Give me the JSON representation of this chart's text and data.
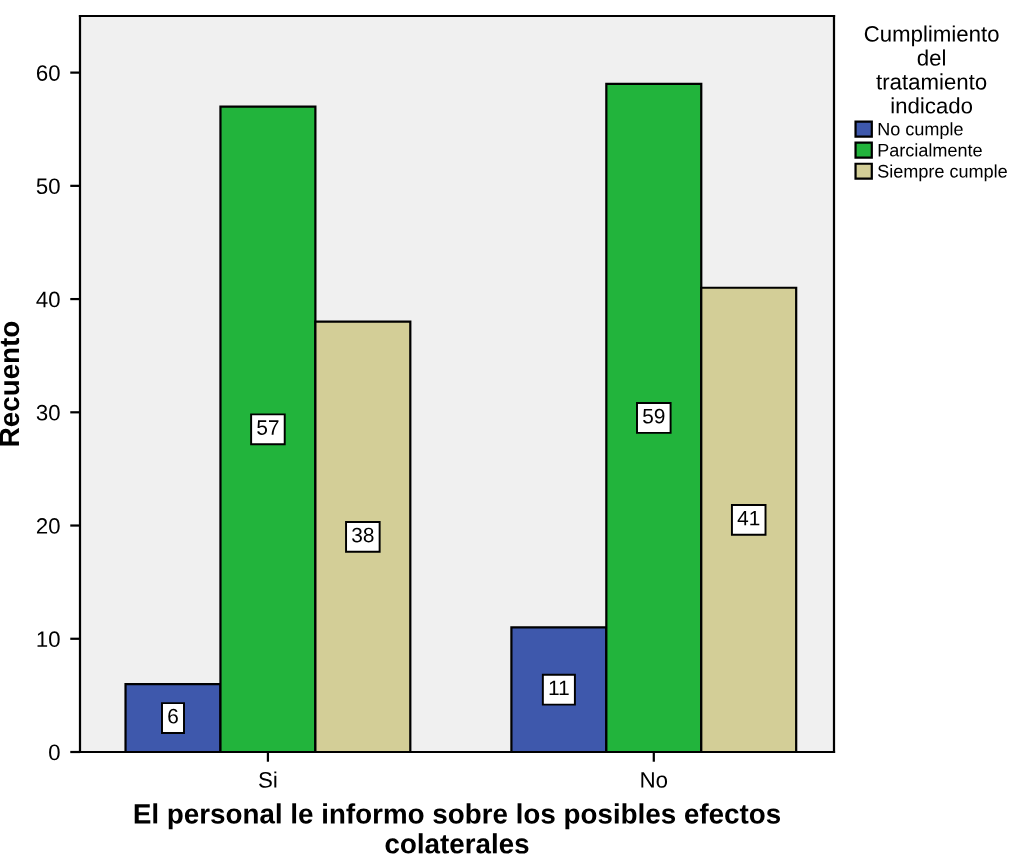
{
  "chart_data": {
    "type": "bar",
    "xlabel": "El personal le informo sobre los posibles efectos\ncolaterales",
    "ylabel": "Recuento",
    "legend_title": "Cumplimiento\ndel\ntratamiento\nindicado",
    "categories": [
      "Si",
      "No"
    ],
    "series": [
      {
        "name": "No cumple",
        "color": "#3e58ac",
        "values": [
          6,
          11
        ]
      },
      {
        "name": "Parcialmente",
        "color": "#22b43c",
        "values": [
          57,
          59
        ]
      },
      {
        "name": "Siempre cumple",
        "color": "#d3ce97",
        "values": [
          38,
          41
        ]
      }
    ],
    "ylim": [
      0,
      65
    ],
    "yticks": [
      0,
      10,
      20,
      30,
      40,
      50,
      60
    ],
    "grid": false,
    "legend": "right",
    "data_labels": true
  }
}
